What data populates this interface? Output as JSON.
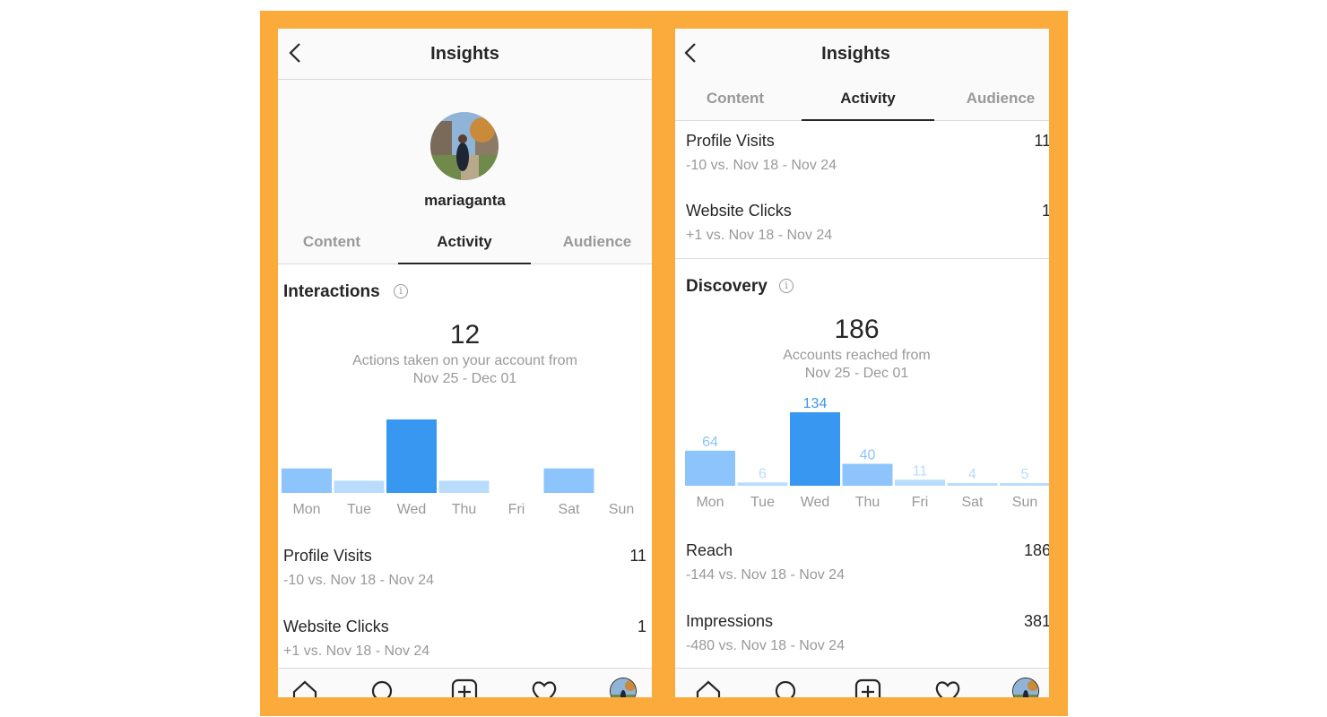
{
  "left": {
    "header": {
      "title": "Insights"
    },
    "profile": {
      "username": "mariaganta"
    },
    "tabs": [
      "Content",
      "Activity",
      "Audience"
    ],
    "interactions": {
      "title": "Interactions",
      "total": "12",
      "desc_line1": "Actions taken on your account from",
      "desc_line2": "Nov 25 - Dec 01"
    },
    "stats": [
      {
        "label": "Profile Visits",
        "value": "11",
        "sub": "-10 vs. Nov 18 - Nov 24"
      },
      {
        "label": "Website Clicks",
        "value": "1",
        "sub": "+1 vs. Nov 18 - Nov 24"
      }
    ]
  },
  "right": {
    "header": {
      "title": "Insights"
    },
    "tabs": [
      "Content",
      "Activity",
      "Audience"
    ],
    "top_stats": [
      {
        "label": "Profile Visits",
        "value": "11",
        "sub": "-10 vs. Nov 18 - Nov 24"
      },
      {
        "label": "Website Clicks",
        "value": "1",
        "sub": "+1 vs. Nov 18 - Nov 24"
      }
    ],
    "discovery": {
      "title": "Discovery",
      "total": "186",
      "desc_line1": "Accounts reached from",
      "desc_line2": "Nov 25 - Dec 01"
    },
    "stats": [
      {
        "label": "Reach",
        "value": "186",
        "sub": "-144 vs. Nov 18 - Nov 24"
      },
      {
        "label": "Impressions",
        "value": "381",
        "sub": "-480 vs. Nov 18 - Nov 24"
      }
    ]
  },
  "colors": {
    "frame": "#fbab3b",
    "bar_peak": "#3897f0",
    "bar_mid": "#8cc4fb",
    "bar_low": "#b9dcfd",
    "label_gray": "#999999"
  },
  "chart_data": [
    {
      "type": "bar",
      "categories": [
        "Mon",
        "Tue",
        "Wed",
        "Thu",
        "Fri",
        "Sat",
        "Sun"
      ],
      "values": [
        2,
        1,
        6,
        1,
        0,
        2,
        0
      ],
      "show_value_labels": false
    },
    {
      "type": "bar",
      "categories": [
        "Mon",
        "Tue",
        "Wed",
        "Thu",
        "Fri",
        "Sat",
        "Sun"
      ],
      "values": [
        64,
        6,
        134,
        40,
        11,
        4,
        5
      ],
      "show_value_labels": true
    }
  ]
}
